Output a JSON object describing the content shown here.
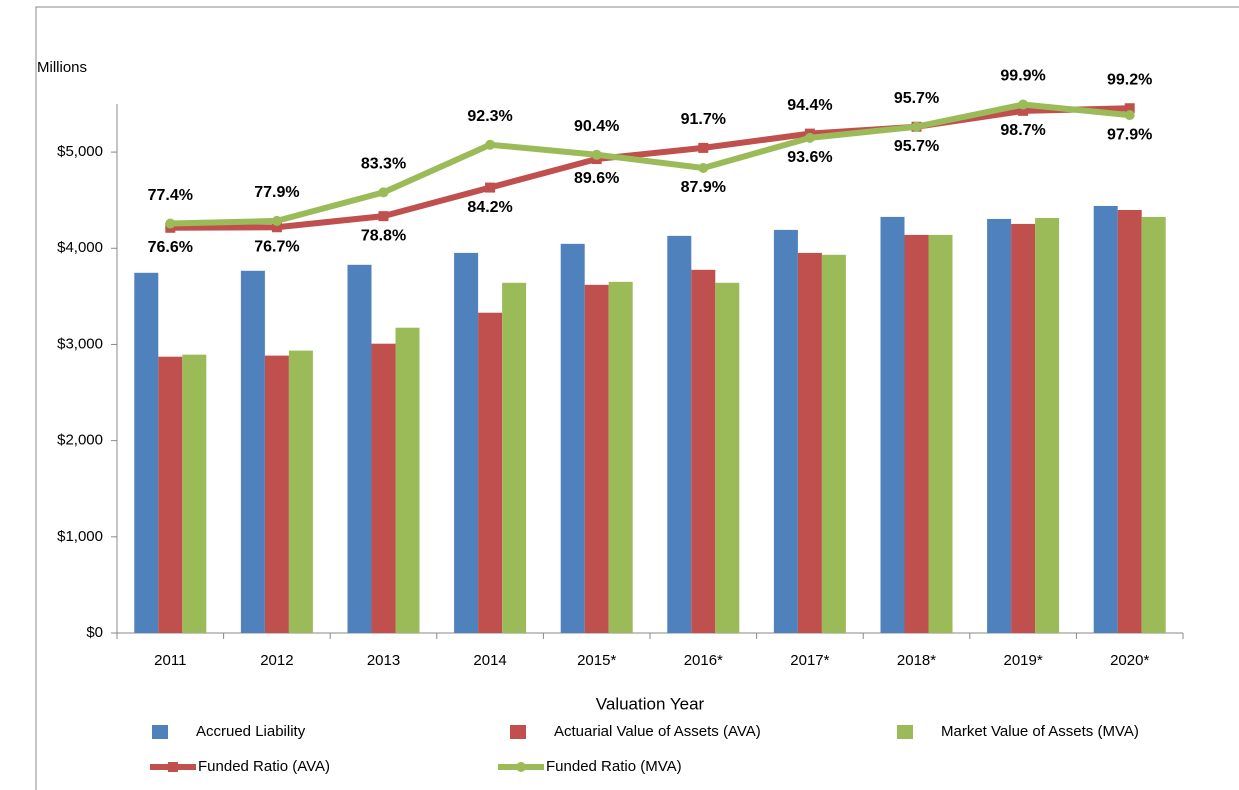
{
  "chart_data": {
    "type": "bar",
    "y_label": "Millions",
    "x_label": "Valuation Year",
    "categories": [
      "2011",
      "2012",
      "2013",
      "2014",
      "2015*",
      "2016*",
      "2017*",
      "2018*",
      "2019*",
      "2020*"
    ],
    "ylim": [
      0,
      5500
    ],
    "yticks": [
      {
        "value": 0,
        "label": "$0"
      },
      {
        "value": 1000,
        "label": "$1,000"
      },
      {
        "value": 2000,
        "label": "$2,000"
      },
      {
        "value": 3000,
        "label": "$3,000"
      },
      {
        "value": 4000,
        "label": "$4,000"
      },
      {
        "value": 5000,
        "label": "$5,000"
      }
    ],
    "y2lim": [
      0,
      100
    ],
    "grid": false,
    "legend": "bottom",
    "series": [
      {
        "name": "Accrued Liability",
        "type": "bar",
        "color": "#4f81bd",
        "values": [
          3745,
          3766,
          3828,
          3952,
          4046,
          4129,
          4191,
          4326,
          4305,
          4440
        ]
      },
      {
        "name": "Actuarial Value of Assets (AVA)",
        "type": "bar",
        "color": "#c0504d",
        "values": [
          2873,
          2884,
          3008,
          3330,
          3620,
          3776,
          3952,
          4139,
          4253,
          4398
        ]
      },
      {
        "name": "Market Value of Assets (MVA)",
        "type": "bar",
        "color": "#9bbb59",
        "values": [
          2894,
          2936,
          3174,
          3641,
          3651,
          3641,
          3932,
          4139,
          4315,
          4326
        ]
      },
      {
        "name": "Funded Ratio (AVA)",
        "type": "line",
        "axis": "y2",
        "marker": "square",
        "color": "#c0504d",
        "values": [
          76.6,
          76.7,
          78.8,
          84.2,
          89.6,
          91.7,
          94.4,
          95.7,
          98.7,
          99.2
        ],
        "value_labels": [
          "76.6%",
          "76.7%",
          "78.8%",
          "84.2%",
          "89.6%",
          "91.7%",
          "94.4%",
          "95.7%",
          "98.7%",
          "99.2%"
        ]
      },
      {
        "name": "Funded Ratio (MVA)",
        "type": "line",
        "axis": "y2",
        "marker": "circle",
        "color": "#9bbb59",
        "values": [
          77.4,
          77.9,
          83.3,
          92.3,
          90.4,
          87.9,
          93.6,
          95.7,
          99.9,
          97.9
        ],
        "value_labels": [
          "77.4%",
          "77.9%",
          "83.3%",
          "92.3%",
          "90.4%",
          "87.9%",
          "93.6%",
          "95.7%",
          "99.9%",
          "97.9%"
        ]
      }
    ]
  }
}
